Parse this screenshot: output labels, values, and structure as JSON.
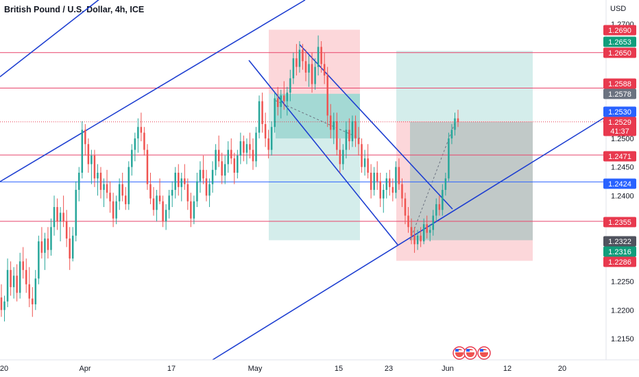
{
  "title": "British Pound / U.S. Dollar, 4h, ICE",
  "currency_label": "USD",
  "colors": {
    "up": "#26a69a",
    "down": "#ef5350",
    "trend_line": "#1e3fd1",
    "red_hline": "#e8436a",
    "blue_hline": "#2962ff",
    "label_red": "#e8394e",
    "label_green": "#109e7c",
    "label_blue": "#2962ff",
    "label_gray": "#6b7280",
    "label_gray_dark": "#50535e",
    "profit_zone": "#26a69a",
    "loss_zone": "#f23645"
  },
  "chart_data": {
    "type": "candlestick",
    "symbol": "British Pound / U.S. Dollar",
    "timeframe": "4h",
    "exchange": "ICE",
    "y_axis": {
      "unit": "USD",
      "ticks": [
        "1.2700",
        "1.2650",
        "1.2600",
        "1.2550",
        "1.2500",
        "1.2450",
        "1.2400",
        "1.2350",
        "1.2300",
        "1.2250",
        "1.2200",
        "1.2150"
      ],
      "range": [
        1.211,
        1.2735
      ]
    },
    "x_axis": {
      "ticks": [
        "20",
        "Apr",
        "17",
        "May",
        "15",
        "23",
        "Jun",
        "12",
        "20"
      ]
    },
    "price_labels": [
      {
        "value": "1.2690",
        "style": "red"
      },
      {
        "value": "1.2653",
        "style": "green"
      },
      {
        "value": "1.2650",
        "style": "red"
      },
      {
        "value": "1.2588",
        "style": "red"
      },
      {
        "value": "1.2578",
        "style": "gray"
      },
      {
        "value": "1.2530",
        "style": "blue"
      },
      {
        "value": "1.2529",
        "style": "red",
        "countdown": "41:37"
      },
      {
        "value": "1.2471",
        "style": "red"
      },
      {
        "value": "1.2424",
        "style": "blue"
      },
      {
        "value": "1.2355",
        "style": "red"
      },
      {
        "value": "1.2322",
        "style": "gray_dark"
      },
      {
        "value": "1.2316",
        "style": "green"
      },
      {
        "value": "1.2286",
        "style": "red"
      }
    ],
    "horizontal_levels": [
      {
        "price": 1.265,
        "color": "red"
      },
      {
        "price": 1.2588,
        "color": "red"
      },
      {
        "price": 1.2471,
        "color": "red"
      },
      {
        "price": 1.2424,
        "color": "blue"
      },
      {
        "price": 1.2355,
        "color": "red"
      }
    ],
    "current_price": 1.2529,
    "positions": [
      {
        "side": "short",
        "entry": 1.2578,
        "stop": 1.269,
        "target": 1.2322
      },
      {
        "side": "long",
        "entry": 1.253,
        "stop": 1.2286,
        "target": 1.2653
      }
    ],
    "candles": [
      [
        1.2222,
        1.2245,
        1.2188,
        1.22
      ],
      [
        1.22,
        1.2225,
        1.218,
        1.2215
      ],
      [
        1.2215,
        1.229,
        1.2205,
        1.227
      ],
      [
        1.227,
        1.2285,
        1.2225,
        1.224
      ],
      [
        1.224,
        1.2275,
        1.222,
        1.226
      ],
      [
        1.226,
        1.228,
        1.2215,
        1.223
      ],
      [
        1.223,
        1.23,
        1.222,
        1.2285
      ],
      [
        1.2285,
        1.231,
        1.2255,
        1.227
      ],
      [
        1.227,
        1.229,
        1.223,
        1.2245
      ],
      [
        1.2245,
        1.2275,
        1.2205,
        1.222
      ],
      [
        1.222,
        1.224,
        1.2188,
        1.221
      ],
      [
        1.221,
        1.227,
        1.22,
        1.2255
      ],
      [
        1.2255,
        1.233,
        1.2245,
        1.232
      ],
      [
        1.232,
        1.2345,
        1.229,
        1.23
      ],
      [
        1.23,
        1.2335,
        1.227,
        1.2325
      ],
      [
        1.2325,
        1.2345,
        1.229,
        1.2305
      ],
      [
        1.2305,
        1.236,
        1.2295,
        1.2345
      ],
      [
        1.2345,
        1.24,
        1.233,
        1.238
      ],
      [
        1.238,
        1.2395,
        1.234,
        1.2355
      ],
      [
        1.2355,
        1.238,
        1.232,
        1.237
      ],
      [
        1.237,
        1.24,
        1.2345,
        1.2355
      ],
      [
        1.2355,
        1.2375,
        1.231,
        1.2325
      ],
      [
        1.2325,
        1.2345,
        1.227,
        1.229
      ],
      [
        1.229,
        1.2345,
        1.2285,
        1.233
      ],
      [
        1.233,
        1.2425,
        1.232,
        1.241
      ],
      [
        1.241,
        1.245,
        1.239,
        1.244
      ],
      [
        1.244,
        1.253,
        1.243,
        1.2515
      ],
      [
        1.2515,
        1.2525,
        1.247,
        1.249
      ],
      [
        1.249,
        1.25,
        1.244,
        1.2455
      ],
      [
        1.2455,
        1.248,
        1.242,
        1.247
      ],
      [
        1.247,
        1.248,
        1.2415,
        1.243
      ],
      [
        1.243,
        1.2455,
        1.24,
        1.244
      ],
      [
        1.244,
        1.245,
        1.2395,
        1.241
      ],
      [
        1.241,
        1.243,
        1.238,
        1.242
      ],
      [
        1.242,
        1.2445,
        1.2395,
        1.2405
      ],
      [
        1.2405,
        1.2425,
        1.237,
        1.239
      ],
      [
        1.239,
        1.2405,
        1.2345,
        1.236
      ],
      [
        1.236,
        1.24,
        1.235,
        1.239
      ],
      [
        1.239,
        1.243,
        1.2375,
        1.242
      ],
      [
        1.242,
        1.244,
        1.239,
        1.24
      ],
      [
        1.24,
        1.2415,
        1.2375,
        1.2385
      ],
      [
        1.2385,
        1.246,
        1.2375,
        1.245
      ],
      [
        1.245,
        1.249,
        1.2435,
        1.248
      ],
      [
        1.248,
        1.251,
        1.246,
        1.25
      ],
      [
        1.25,
        1.2535,
        1.2475,
        1.252
      ],
      [
        1.252,
        1.2545,
        1.2495,
        1.251
      ],
      [
        1.251,
        1.252,
        1.247,
        1.248
      ],
      [
        1.248,
        1.249,
        1.241,
        1.242
      ],
      [
        1.242,
        1.244,
        1.2385,
        1.2395
      ],
      [
        1.2395,
        1.2415,
        1.2365,
        1.2375
      ],
      [
        1.2375,
        1.241,
        1.2355,
        1.24
      ],
      [
        1.24,
        1.243,
        1.2385,
        1.239
      ],
      [
        1.239,
        1.24,
        1.2345,
        1.2355
      ],
      [
        1.2355,
        1.2385,
        1.234,
        1.2375
      ],
      [
        1.2375,
        1.241,
        1.236,
        1.24
      ],
      [
        1.24,
        1.2425,
        1.238,
        1.241
      ],
      [
        1.241,
        1.245,
        1.2395,
        1.244
      ],
      [
        1.244,
        1.2455,
        1.24,
        1.2415
      ],
      [
        1.2415,
        1.244,
        1.239,
        1.243
      ],
      [
        1.243,
        1.2455,
        1.241,
        1.242
      ],
      [
        1.242,
        1.243,
        1.2375,
        1.239
      ],
      [
        1.239,
        1.2405,
        1.2345,
        1.236
      ],
      [
        1.236,
        1.24,
        1.235,
        1.239
      ],
      [
        1.239,
        1.244,
        1.238,
        1.2425
      ],
      [
        1.2425,
        1.246,
        1.2405,
        1.2445
      ],
      [
        1.2445,
        1.247,
        1.242,
        1.243
      ],
      [
        1.243,
        1.2445,
        1.239,
        1.24
      ],
      [
        1.24,
        1.243,
        1.238,
        1.242
      ],
      [
        1.242,
        1.246,
        1.2405,
        1.2445
      ],
      [
        1.2445,
        1.249,
        1.2435,
        1.248
      ],
      [
        1.248,
        1.2505,
        1.245,
        1.246
      ],
      [
        1.246,
        1.2475,
        1.242,
        1.2435
      ],
      [
        1.2435,
        1.247,
        1.242,
        1.2455
      ],
      [
        1.2455,
        1.2495,
        1.244,
        1.248
      ],
      [
        1.248,
        1.25,
        1.2455,
        1.2465
      ],
      [
        1.2465,
        1.2475,
        1.242,
        1.244
      ],
      [
        1.244,
        1.248,
        1.243,
        1.247
      ],
      [
        1.247,
        1.251,
        1.2455,
        1.2495
      ],
      [
        1.2495,
        1.2505,
        1.246,
        1.2475
      ],
      [
        1.2475,
        1.25,
        1.2455,
        1.249
      ],
      [
        1.249,
        1.251,
        1.2465,
        1.248
      ],
      [
        1.248,
        1.25,
        1.2445,
        1.246
      ],
      [
        1.246,
        1.252,
        1.245,
        1.251
      ],
      [
        1.251,
        1.2575,
        1.25,
        1.2565
      ],
      [
        1.2565,
        1.258,
        1.251,
        1.2525
      ],
      [
        1.2525,
        1.2545,
        1.2485,
        1.25
      ],
      [
        1.25,
        1.2515,
        1.2465,
        1.248
      ],
      [
        1.248,
        1.253,
        1.247,
        1.252
      ],
      [
        1.252,
        1.258,
        1.251,
        1.257
      ],
      [
        1.257,
        1.259,
        1.254,
        1.2555
      ],
      [
        1.2555,
        1.2585,
        1.2535,
        1.2575
      ],
      [
        1.2575,
        1.26,
        1.255,
        1.2565
      ],
      [
        1.2565,
        1.259,
        1.254,
        1.258
      ],
      [
        1.258,
        1.262,
        1.2565,
        1.2605
      ],
      [
        1.2605,
        1.265,
        1.2595,
        1.264
      ],
      [
        1.264,
        1.2665,
        1.261,
        1.2625
      ],
      [
        1.2625,
        1.267,
        1.2615,
        1.2655
      ],
      [
        1.2655,
        1.2665,
        1.262,
        1.2635
      ],
      [
        1.2635,
        1.2655,
        1.26,
        1.2615
      ],
      [
        1.2615,
        1.2645,
        1.259,
        1.263
      ],
      [
        1.263,
        1.265,
        1.258,
        1.2595
      ],
      [
        1.2595,
        1.264,
        1.2585,
        1.2625
      ],
      [
        1.2625,
        1.268,
        1.261,
        1.266
      ],
      [
        1.266,
        1.267,
        1.2615,
        1.263
      ],
      [
        1.263,
        1.265,
        1.2595,
        1.261
      ],
      [
        1.261,
        1.2625,
        1.252,
        1.254
      ],
      [
        1.254,
        1.256,
        1.25,
        1.2515
      ],
      [
        1.2515,
        1.2545,
        1.249,
        1.253
      ],
      [
        1.253,
        1.2545,
        1.247,
        1.248
      ],
      [
        1.248,
        1.25,
        1.244,
        1.2455
      ],
      [
        1.2455,
        1.249,
        1.2445,
        1.248
      ],
      [
        1.248,
        1.253,
        1.2465,
        1.2515
      ],
      [
        1.2515,
        1.2535,
        1.248,
        1.2495
      ],
      [
        1.2495,
        1.254,
        1.2485,
        1.253
      ],
      [
        1.253,
        1.254,
        1.2485,
        1.25
      ],
      [
        1.25,
        1.252,
        1.247,
        1.249
      ],
      [
        1.249,
        1.25,
        1.244,
        1.245
      ],
      [
        1.245,
        1.248,
        1.2435,
        1.2465
      ],
      [
        1.2465,
        1.249,
        1.243,
        1.244
      ],
      [
        1.244,
        1.2455,
        1.2395,
        1.241
      ],
      [
        1.241,
        1.245,
        1.24,
        1.244
      ],
      [
        1.244,
        1.246,
        1.241,
        1.2425
      ],
      [
        1.2425,
        1.244,
        1.238,
        1.2395
      ],
      [
        1.2395,
        1.242,
        1.237,
        1.241
      ],
      [
        1.241,
        1.244,
        1.2395,
        1.243
      ],
      [
        1.243,
        1.2445,
        1.24,
        1.2415
      ],
      [
        1.2415,
        1.243,
        1.239,
        1.2405
      ],
      [
        1.2405,
        1.246,
        1.2395,
        1.245
      ],
      [
        1.245,
        1.2465,
        1.241,
        1.242
      ],
      [
        1.242,
        1.243,
        1.238,
        1.2395
      ],
      [
        1.2395,
        1.2405,
        1.235,
        1.2365
      ],
      [
        1.2365,
        1.238,
        1.2335,
        1.2345
      ],
      [
        1.2345,
        1.236,
        1.2315,
        1.233
      ],
      [
        1.233,
        1.2345,
        1.23,
        1.2315
      ],
      [
        1.2315,
        1.234,
        1.2305,
        1.233
      ],
      [
        1.233,
        1.2345,
        1.231,
        1.232
      ],
      [
        1.232,
        1.236,
        1.2315,
        1.235
      ],
      [
        1.235,
        1.2365,
        1.2325,
        1.2335
      ],
      [
        1.2335,
        1.235,
        1.232,
        1.234
      ],
      [
        1.234,
        1.2375,
        1.233,
        1.2365
      ],
      [
        1.2365,
        1.2395,
        1.2355,
        1.2385
      ],
      [
        1.2385,
        1.24,
        1.2365,
        1.2375
      ],
      [
        1.2375,
        1.242,
        1.2365,
        1.241
      ],
      [
        1.241,
        1.244,
        1.24,
        1.243
      ],
      [
        1.243,
        1.251,
        1.2425,
        1.25
      ],
      [
        1.25,
        1.2525,
        1.249,
        1.2515
      ],
      [
        1.2515,
        1.2545,
        1.2505,
        1.2535
      ],
      [
        1.2535,
        1.255,
        1.252,
        1.2529
      ]
    ]
  },
  "flags": [
    "us-flag-icon",
    "us-flag-icon",
    "us-flag-icon"
  ]
}
